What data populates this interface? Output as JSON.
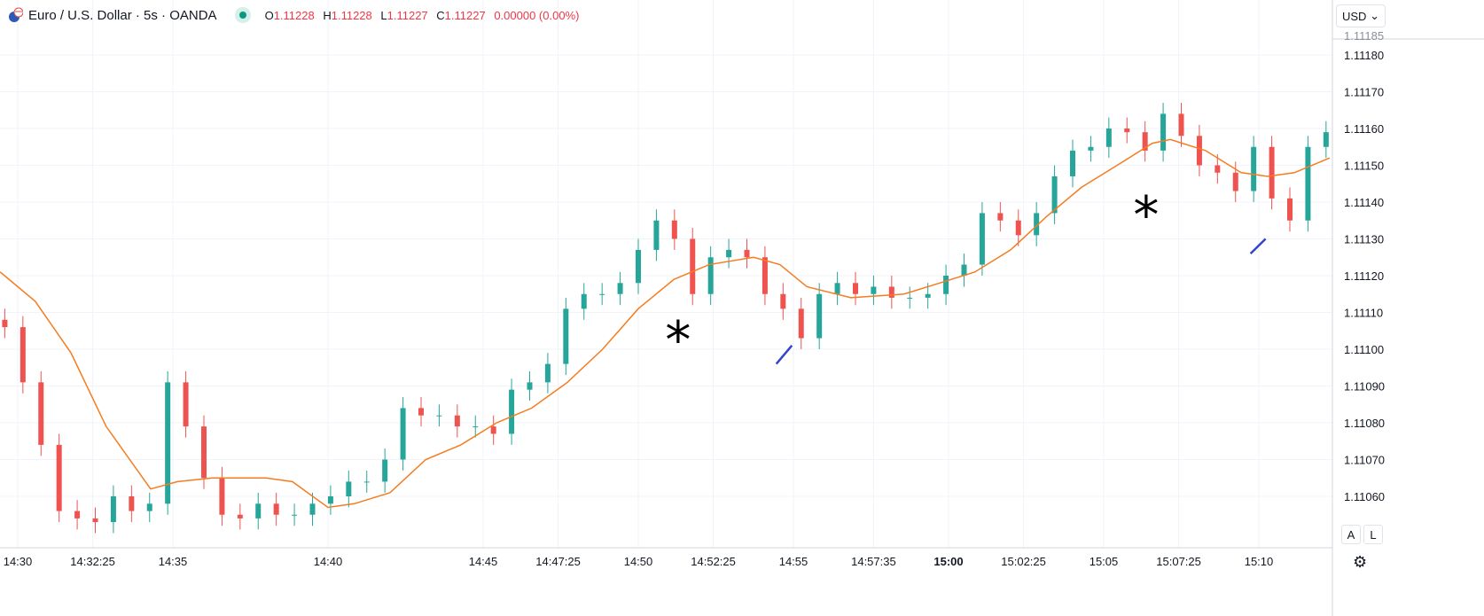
{
  "header": {
    "symbol": "Euro / U.S. Dollar · 5s · OANDA",
    "o_label": "O",
    "o": "1.11228",
    "h_label": "H",
    "h": "1.11228",
    "l_label": "L",
    "l": "1.11227",
    "c_label": "C",
    "c": "1.11227",
    "change": "0.00000 (0.00%)"
  },
  "currency": "USD",
  "buttons": {
    "auto": "A",
    "log": "L"
  },
  "colors": {
    "up": "#26a69a",
    "down": "#ef5350",
    "ma": "#f57c1f",
    "annotation_line": "#3344cc",
    "grid": "#f0f3fa"
  },
  "chart_data": {
    "type": "candlestick",
    "price_ticks": [
      "1.11180",
      "1.11170",
      "1.11160",
      "1.11150",
      "1.11140",
      "1.11130",
      "1.11120",
      "1.11110",
      "1.11100",
      "1.11090",
      "1.11080",
      "1.11070",
      "1.11060"
    ],
    "price_top_label": "1.11185",
    "time_ticks": [
      {
        "t": "14:30:00",
        "label": "14:30"
      },
      {
        "t": "14:32:25",
        "label": "14:32:25"
      },
      {
        "t": "14:35:00",
        "label": "14:35"
      },
      {
        "t": "14:40:00",
        "label": "14:40"
      },
      {
        "t": "14:45:00",
        "label": "14:45"
      },
      {
        "t": "14:47:25",
        "label": "14:47:25"
      },
      {
        "t": "14:50:00",
        "label": "14:50"
      },
      {
        "t": "14:52:25",
        "label": "14:52:25"
      },
      {
        "t": "14:55:00",
        "label": "14:55"
      },
      {
        "t": "14:57:35",
        "label": "14:57:35"
      },
      {
        "t": "15:00:00",
        "label": "15:00",
        "bold": true
      },
      {
        "t": "15:02:25",
        "label": "15:02:25"
      },
      {
        "t": "15:05:00",
        "label": "15:05"
      },
      {
        "t": "15:07:25",
        "label": "15:07:25"
      },
      {
        "t": "15:10:00",
        "label": "15:10"
      }
    ],
    "closes": [
      [
        "14:29:35",
        1.11106
      ],
      [
        "14:30:10",
        1.11091
      ],
      [
        "14:30:45",
        1.11074
      ],
      [
        "14:31:20",
        1.11056
      ],
      [
        "14:31:55",
        1.11054
      ],
      [
        "14:32:30",
        1.11053
      ],
      [
        "14:33:05",
        1.1106
      ],
      [
        "14:33:40",
        1.11056
      ],
      [
        "14:34:15",
        1.11058
      ],
      [
        "14:34:50",
        1.11091
      ],
      [
        "14:35:25",
        1.11079
      ],
      [
        "14:36:00",
        1.11065
      ],
      [
        "14:36:35",
        1.11055
      ],
      [
        "14:37:10",
        1.11054
      ],
      [
        "14:37:45",
        1.11058
      ],
      [
        "14:38:20",
        1.11055
      ],
      [
        "14:38:55",
        1.11055
      ],
      [
        "14:39:30",
        1.11058
      ],
      [
        "14:40:05",
        1.1106
      ],
      [
        "14:40:40",
        1.11064
      ],
      [
        "14:41:15",
        1.11064
      ],
      [
        "14:41:50",
        1.1107
      ],
      [
        "14:42:25",
        1.11084
      ],
      [
        "14:43:00",
        1.11082
      ],
      [
        "14:43:35",
        1.11082
      ],
      [
        "14:44:10",
        1.11079
      ],
      [
        "14:44:45",
        1.11079
      ],
      [
        "14:45:20",
        1.11077
      ],
      [
        "14:45:55",
        1.11089
      ],
      [
        "14:46:30",
        1.11091
      ],
      [
        "14:47:05",
        1.11096
      ],
      [
        "14:47:40",
        1.11111
      ],
      [
        "14:48:15",
        1.11115
      ],
      [
        "14:48:50",
        1.11115
      ],
      [
        "14:49:25",
        1.11118
      ],
      [
        "14:50:00",
        1.11127
      ],
      [
        "14:50:35",
        1.11135
      ],
      [
        "14:51:10",
        1.1113
      ],
      [
        "14:51:45",
        1.11115
      ],
      [
        "14:52:20",
        1.11125
      ],
      [
        "14:52:55",
        1.11127
      ],
      [
        "14:53:30",
        1.11125
      ],
      [
        "14:54:05",
        1.11115
      ],
      [
        "14:54:40",
        1.11111
      ],
      [
        "14:55:15",
        1.11103
      ],
      [
        "14:55:50",
        1.11115
      ],
      [
        "14:56:25",
        1.11118
      ],
      [
        "14:57:00",
        1.11115
      ],
      [
        "14:57:35",
        1.11117
      ],
      [
        "14:58:10",
        1.11114
      ],
      [
        "14:58:45",
        1.11114
      ],
      [
        "14:59:20",
        1.11115
      ],
      [
        "14:59:55",
        1.1112
      ],
      [
        "15:00:30",
        1.11123
      ],
      [
        "15:01:05",
        1.11137
      ],
      [
        "15:01:40",
        1.11135
      ],
      [
        "15:02:15",
        1.11131
      ],
      [
        "15:02:50",
        1.11137
      ],
      [
        "15:03:25",
        1.11147
      ],
      [
        "15:04:00",
        1.11154
      ],
      [
        "15:04:35",
        1.11155
      ],
      [
        "15:05:10",
        1.1116
      ],
      [
        "15:05:45",
        1.11159
      ],
      [
        "15:06:20",
        1.11154
      ],
      [
        "15:06:55",
        1.11164
      ],
      [
        "15:07:30",
        1.11158
      ],
      [
        "15:08:05",
        1.1115
      ],
      [
        "15:08:40",
        1.11148
      ],
      [
        "15:09:15",
        1.11143
      ],
      [
        "15:09:50",
        1.11155
      ],
      [
        "15:10:25",
        1.11141
      ],
      [
        "15:11:00",
        1.11135
      ],
      [
        "15:11:35",
        1.11155
      ],
      [
        "15:12:10",
        1.11159
      ]
    ],
    "moving_average": [
      [
        "14:29:26",
        1.11121
      ],
      [
        "14:30:34",
        1.11113
      ],
      [
        "14:31:43",
        1.11099
      ],
      [
        "14:32:51",
        1.11079
      ],
      [
        "14:34:17",
        1.11062
      ],
      [
        "14:35:09",
        1.11064
      ],
      [
        "14:36:17",
        1.11065
      ],
      [
        "14:38:00",
        1.11065
      ],
      [
        "14:38:51",
        1.11064
      ],
      [
        "14:40:00",
        1.11057
      ],
      [
        "14:40:51",
        1.11058
      ],
      [
        "14:42:00",
        1.11061
      ],
      [
        "14:43:09",
        1.1107
      ],
      [
        "14:44:17",
        1.11074
      ],
      [
        "14:45:26",
        1.1108
      ],
      [
        "14:46:34",
        1.11084
      ],
      [
        "14:47:43",
        1.11091
      ],
      [
        "14:48:51",
        1.111
      ],
      [
        "14:50:00",
        1.11111
      ],
      [
        "14:51:09",
        1.11119
      ],
      [
        "14:52:17",
        1.11123
      ],
      [
        "14:53:43",
        1.11125
      ],
      [
        "14:54:34",
        1.11123
      ],
      [
        "14:55:26",
        1.11117
      ],
      [
        "14:56:51",
        1.11114
      ],
      [
        "14:58:34",
        1.11115
      ],
      [
        "14:59:43",
        1.11118
      ],
      [
        "15:00:51",
        1.11121
      ],
      [
        "15:02:00",
        1.11127
      ],
      [
        "15:03:09",
        1.11136
      ],
      [
        "15:04:17",
        1.11144
      ],
      [
        "15:05:26",
        1.1115
      ],
      [
        "15:06:34",
        1.11156
      ],
      [
        "15:07:09",
        1.11157
      ],
      [
        "15:08:17",
        1.11154
      ],
      [
        "15:09:26",
        1.11148
      ],
      [
        "15:10:17",
        1.11147
      ],
      [
        "15:11:09",
        1.11148
      ],
      [
        "15:12:17",
        1.11152
      ]
    ],
    "annotations": {
      "asterisks": [
        [
          "14:51:17",
          1.11103
        ],
        [
          "15:06:22",
          1.11137
        ]
      ],
      "lines": [
        [
          [
            "14:54:27",
            1.11096
          ],
          [
            "14:54:57",
            1.11101
          ]
        ],
        [
          [
            "15:09:44",
            1.11126
          ],
          [
            "15:10:13",
            1.1113
          ]
        ]
      ]
    },
    "grid": true
  }
}
